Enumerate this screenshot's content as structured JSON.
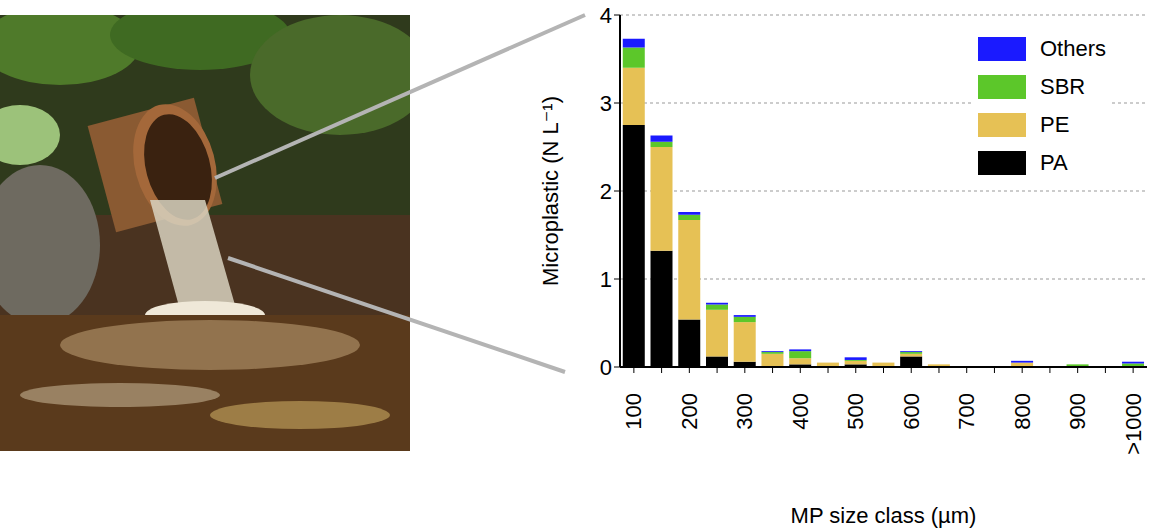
{
  "chart_data": {
    "type": "bar",
    "stacked": true,
    "grid": true,
    "legend": "upper right",
    "x_label": "MP size class (µm)",
    "y_label": "Microplastic (N L⁻¹)",
    "categories": [
      "100",
      null,
      "200",
      null,
      "300",
      null,
      "400",
      null,
      "500",
      null,
      "600",
      null,
      "700",
      null,
      "800",
      null,
      "900",
      null,
      ">1000"
    ],
    "ylim": [
      0,
      4
    ],
    "yticks": [
      0,
      1,
      2,
      3,
      4
    ],
    "series": [
      {
        "name": "PA",
        "color": "#000000",
        "values": [
          2.75,
          1.32,
          0.54,
          0.12,
          0.06,
          0,
          0.03,
          0.01,
          0.03,
          0,
          0.12,
          0.01,
          0,
          0,
          0,
          0,
          0,
          0,
          0
        ]
      },
      {
        "name": "PE",
        "color": "#e6c155",
        "values": [
          0.65,
          1.18,
          1.13,
          0.53,
          0.45,
          0.15,
          0.07,
          0.04,
          0.04,
          0.05,
          0.03,
          0.02,
          0,
          0,
          0.05,
          0,
          0.01,
          0,
          0.01
        ]
      },
      {
        "name": "SBR",
        "color": "#5cc72a",
        "values": [
          0.23,
          0.06,
          0.06,
          0.06,
          0.06,
          0.02,
          0.08,
          0,
          0.01,
          0,
          0.02,
          0,
          0,
          0,
          0,
          0,
          0.02,
          0,
          0.03
        ]
      },
      {
        "name": "Others",
        "color": "#1a1aff",
        "values": [
          0.1,
          0.07,
          0.03,
          0.02,
          0.02,
          0.01,
          0.02,
          0,
          0.03,
          0,
          0.01,
          0,
          0,
          0,
          0.02,
          0,
          0,
          0,
          0.02
        ]
      }
    ]
  }
}
